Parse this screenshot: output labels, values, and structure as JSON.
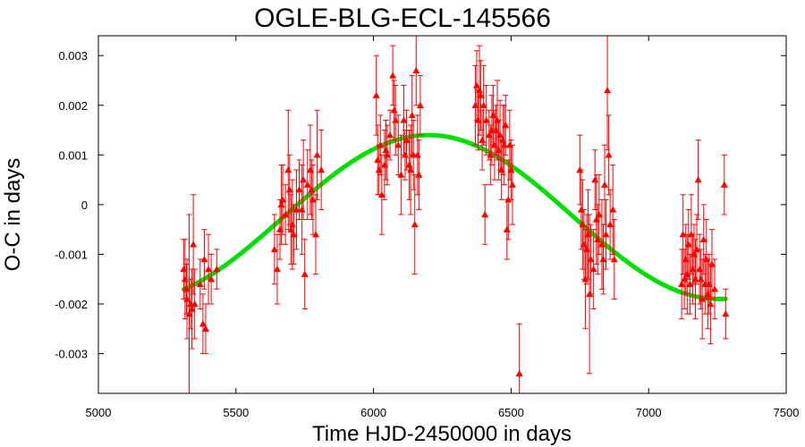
{
  "chart_data": {
    "type": "scatter",
    "title": "OGLE-BLG-ECL-145566",
    "xlabel": "Time HJD-2450000 in days",
    "ylabel": "O-C in days",
    "xlim": [
      5000,
      7500
    ],
    "ylim": [
      -0.0038,
      0.0034
    ],
    "xticks": [
      5000,
      5500,
      6000,
      6500,
      7000,
      7500
    ],
    "yticks": [
      -0.003,
      -0.002,
      -0.001,
      0,
      0.001,
      0.002,
      0.003
    ],
    "xtick_labels": [
      "5000",
      "5500",
      "6000",
      "6500",
      "7000",
      "7500"
    ],
    "ytick_labels": [
      "-0.003",
      "-0.002",
      "-0.001",
      "0",
      "0.001",
      "0.002",
      "0.003"
    ],
    "grid": false,
    "colors": {
      "points": "#ff0000",
      "fit": "#00e000"
    },
    "series": [
      {
        "kind": "points-with-errorbars",
        "points": [
          {
            "x": 5310,
            "y": -0.0013,
            "err": 0.0006
          },
          {
            "x": 5315,
            "y": -0.0015,
            "err": 0.0008
          },
          {
            "x": 5320,
            "y": -0.0017,
            "err": 0.0005
          },
          {
            "x": 5322,
            "y": -0.0019,
            "err": 0.0008
          },
          {
            "x": 5330,
            "y": -0.0022,
            "err": 0.002
          },
          {
            "x": 5335,
            "y": -0.002,
            "err": 0.0005
          },
          {
            "x": 5340,
            "y": -0.0021,
            "err": 0.0008
          },
          {
            "x": 5345,
            "y": -0.0008,
            "err": 0.001
          },
          {
            "x": 5350,
            "y": -0.002,
            "err": 0.0007
          },
          {
            "x": 5370,
            "y": -0.0016,
            "err": 0.0005
          },
          {
            "x": 5380,
            "y": -0.0024,
            "err": 0.0006
          },
          {
            "x": 5385,
            "y": -0.0011,
            "err": 0.0006
          },
          {
            "x": 5390,
            "y": -0.0025,
            "err": 0.0005
          },
          {
            "x": 5400,
            "y": -0.0013,
            "err": 0.0007
          },
          {
            "x": 5410,
            "y": -0.0015,
            "err": 0.0005
          },
          {
            "x": 5430,
            "y": -0.0013,
            "err": 0.0004
          },
          {
            "x": 5640,
            "y": -0.0009,
            "err": 0.0007
          },
          {
            "x": 5650,
            "y": -0.0013,
            "err": 0.0007
          },
          {
            "x": 5660,
            "y": -0.0005,
            "err": 0.0006
          },
          {
            "x": 5665,
            "y": 0.0,
            "err": 0.0008
          },
          {
            "x": 5670,
            "y": 0.0001,
            "err": 0.0007
          },
          {
            "x": 5680,
            "y": -0.0002,
            "err": 0.0006
          },
          {
            "x": 5690,
            "y": 0.0007,
            "err": 0.0012
          },
          {
            "x": 5695,
            "y": 0.0003,
            "err": 0.0007
          },
          {
            "x": 5700,
            "y": -0.0005,
            "err": 0.0007
          },
          {
            "x": 5705,
            "y": -0.0004,
            "err": 0.0009
          },
          {
            "x": 5710,
            "y": -0.0006,
            "err": 0.0006
          },
          {
            "x": 5720,
            "y": -0.0001,
            "err": 0.0008
          },
          {
            "x": 5730,
            "y": 0.0003,
            "err": 0.0006
          },
          {
            "x": 5740,
            "y": -0.0001,
            "err": 0.0009
          },
          {
            "x": 5745,
            "y": 0.0005,
            "err": 0.0008
          },
          {
            "x": 5750,
            "y": -0.0014,
            "err": 0.0007
          },
          {
            "x": 5760,
            "y": 0.0004,
            "err": 0.0007
          },
          {
            "x": 5770,
            "y": 0.0007,
            "err": 0.0009
          },
          {
            "x": 5775,
            "y": 0.0003,
            "err": 0.0006
          },
          {
            "x": 5780,
            "y": 0.0001,
            "err": 0.0007
          },
          {
            "x": 5790,
            "y": -0.0006,
            "err": 0.0008
          },
          {
            "x": 5795,
            "y": 0.001,
            "err": 0.0009
          },
          {
            "x": 5810,
            "y": 0.0007,
            "err": 0.0008
          },
          {
            "x": 6010,
            "y": 0.0022,
            "err": 0.0008
          },
          {
            "x": 6015,
            "y": 0.0009,
            "err": 0.0007
          },
          {
            "x": 6020,
            "y": 0.0007,
            "err": 0.0005
          },
          {
            "x": 6025,
            "y": 0.0012,
            "err": 0.0006
          },
          {
            "x": 6030,
            "y": 0.0002,
            "err": 0.0008
          },
          {
            "x": 6040,
            "y": 0.0008,
            "err": 0.0007
          },
          {
            "x": 6045,
            "y": 0.0011,
            "err": 0.0006
          },
          {
            "x": 6050,
            "y": 0.001,
            "err": 0.0006
          },
          {
            "x": 6060,
            "y": 0.0014,
            "err": 0.0005
          },
          {
            "x": 6070,
            "y": 0.0026,
            "err": 0.0006
          },
          {
            "x": 6075,
            "y": 0.0019,
            "err": 0.0006
          },
          {
            "x": 6080,
            "y": 0.0017,
            "err": 0.0007
          },
          {
            "x": 6090,
            "y": 0.0012,
            "err": 0.0006
          },
          {
            "x": 6100,
            "y": 0.0006,
            "err": 0.0008
          },
          {
            "x": 6110,
            "y": 0.0017,
            "err": 0.0007
          },
          {
            "x": 6115,
            "y": 0.001,
            "err": 0.0005
          },
          {
            "x": 6120,
            "y": 0.0013,
            "err": 0.0006
          },
          {
            "x": 6130,
            "y": 0.0008,
            "err": 0.0007
          },
          {
            "x": 6135,
            "y": 0.0007,
            "err": 0.0009
          },
          {
            "x": 6140,
            "y": 0.0018,
            "err": 0.0008
          },
          {
            "x": 6145,
            "y": 0.001,
            "err": 0.0007
          },
          {
            "x": 6150,
            "y": -0.0004,
            "err": 0.001
          },
          {
            "x": 6155,
            "y": 0.0027,
            "err": 0.0007
          },
          {
            "x": 6160,
            "y": 0.001,
            "err": 0.0008
          },
          {
            "x": 6165,
            "y": 0.0006,
            "err": 0.0007
          },
          {
            "x": 6170,
            "y": 0.002,
            "err": 0.0006
          },
          {
            "x": 6370,
            "y": 0.002,
            "err": 0.0008
          },
          {
            "x": 6375,
            "y": 0.0024,
            "err": 0.0007
          },
          {
            "x": 6380,
            "y": 0.0017,
            "err": 0.0006
          },
          {
            "x": 6385,
            "y": 0.0023,
            "err": 0.0009
          },
          {
            "x": 6390,
            "y": 0.0022,
            "err": 0.0007
          },
          {
            "x": 6395,
            "y": 0.0013,
            "err": 0.0006
          },
          {
            "x": 6400,
            "y": 0.002,
            "err": 0.0008
          },
          {
            "x": 6405,
            "y": -0.0002,
            "err": 0.0006
          },
          {
            "x": 6410,
            "y": 0.0017,
            "err": 0.0007
          },
          {
            "x": 6420,
            "y": 0.0014,
            "err": 0.0005
          },
          {
            "x": 6425,
            "y": 0.001,
            "err": 0.0006
          },
          {
            "x": 6430,
            "y": 0.0015,
            "err": 0.0007
          },
          {
            "x": 6435,
            "y": 0.0018,
            "err": 0.0006
          },
          {
            "x": 6440,
            "y": 0.0012,
            "err": 0.0007
          },
          {
            "x": 6445,
            "y": 0.0015,
            "err": 0.0005
          },
          {
            "x": 6450,
            "y": 0.0017,
            "err": 0.0008
          },
          {
            "x": 6455,
            "y": 0.0011,
            "err": 0.0006
          },
          {
            "x": 6460,
            "y": 0.0014,
            "err": 0.0007
          },
          {
            "x": 6465,
            "y": 0.0007,
            "err": 0.0006
          },
          {
            "x": 6470,
            "y": 0.0013,
            "err": 0.0007
          },
          {
            "x": 6475,
            "y": 0.0012,
            "err": 0.0008
          },
          {
            "x": 6480,
            "y": 0.0016,
            "err": 0.0006
          },
          {
            "x": 6485,
            "y": -0.0005,
            "err": 0.0006
          },
          {
            "x": 6490,
            "y": 0.0001,
            "err": 0.0008
          },
          {
            "x": 6495,
            "y": 0.0012,
            "err": 0.0007
          },
          {
            "x": 6500,
            "y": 0.0007,
            "err": 0.0006
          },
          {
            "x": 6505,
            "y": 0.0004,
            "err": 0.0008
          },
          {
            "x": 6530,
            "y": -0.0034,
            "err": 0.001
          },
          {
            "x": 6750,
            "y": 0.0007,
            "err": 0.0007
          },
          {
            "x": 6755,
            "y": -0.0001,
            "err": 0.0008
          },
          {
            "x": 6760,
            "y": -0.0004,
            "err": 0.0009
          },
          {
            "x": 6765,
            "y": -0.0008,
            "err": 0.0007
          },
          {
            "x": 6770,
            "y": -0.0015,
            "err": 0.001
          },
          {
            "x": 6775,
            "y": -0.0009,
            "err": 0.0007
          },
          {
            "x": 6780,
            "y": -0.0006,
            "err": 0.0009
          },
          {
            "x": 6785,
            "y": -0.0018,
            "err": 0.0016
          },
          {
            "x": 6790,
            "y": -0.0011,
            "err": 0.0007
          },
          {
            "x": 6800,
            "y": -0.0013,
            "err": 0.0008
          },
          {
            "x": 6805,
            "y": 0.0005,
            "err": 0.0006
          },
          {
            "x": 6810,
            "y": -0.0003,
            "err": 0.0009
          },
          {
            "x": 6815,
            "y": -0.0007,
            "err": 0.0007
          },
          {
            "x": 6820,
            "y": -0.0002,
            "err": 0.0008
          },
          {
            "x": 6830,
            "y": -0.0008,
            "err": 0.0009
          },
          {
            "x": 6835,
            "y": -0.0011,
            "err": 0.0007
          },
          {
            "x": 6840,
            "y": 0.0004,
            "err": 0.0008
          },
          {
            "x": 6845,
            "y": -0.0006,
            "err": 0.0007
          },
          {
            "x": 6850,
            "y": 0.0023,
            "err": 0.0012
          },
          {
            "x": 6855,
            "y": 0.001,
            "err": 0.0008
          },
          {
            "x": 6860,
            "y": -0.0004,
            "err": 0.0007
          },
          {
            "x": 6870,
            "y": -0.0001,
            "err": 0.0009
          },
          {
            "x": 6875,
            "y": -0.0011,
            "err": 0.0008
          },
          {
            "x": 7120,
            "y": -0.0016,
            "err": 0.0007
          },
          {
            "x": 7125,
            "y": -0.0006,
            "err": 0.0008
          },
          {
            "x": 7130,
            "y": -0.0015,
            "err": 0.0006
          },
          {
            "x": 7135,
            "y": -0.0011,
            "err": 0.0007
          },
          {
            "x": 7140,
            "y": -0.0014,
            "err": 0.0008
          },
          {
            "x": 7145,
            "y": -0.0008,
            "err": 0.0007
          },
          {
            "x": 7150,
            "y": -0.0016,
            "err": 0.0006
          },
          {
            "x": 7155,
            "y": -0.0006,
            "err": 0.0008
          },
          {
            "x": 7160,
            "y": -0.0013,
            "err": 0.0007
          },
          {
            "x": 7165,
            "y": -0.001,
            "err": 0.0006
          },
          {
            "x": 7170,
            "y": -0.0015,
            "err": 0.0008
          },
          {
            "x": 7175,
            "y": -0.0009,
            "err": 0.0007
          },
          {
            "x": 7180,
            "y": 0.0005,
            "err": 0.0008
          },
          {
            "x": 7185,
            "y": -0.0013,
            "err": 0.0007
          },
          {
            "x": 7190,
            "y": -0.0015,
            "err": 0.0006
          },
          {
            "x": 7195,
            "y": -0.0019,
            "err": 0.0008
          },
          {
            "x": 7200,
            "y": -0.0007,
            "err": 0.0007
          },
          {
            "x": 7205,
            "y": -0.0016,
            "err": 0.0006
          },
          {
            "x": 7210,
            "y": -0.0011,
            "err": 0.0008
          },
          {
            "x": 7215,
            "y": -0.0018,
            "err": 0.0007
          },
          {
            "x": 7220,
            "y": -0.0016,
            "err": 0.0006
          },
          {
            "x": 7225,
            "y": -0.002,
            "err": 0.0008
          },
          {
            "x": 7230,
            "y": -0.0012,
            "err": 0.0007
          },
          {
            "x": 7240,
            "y": -0.0017,
            "err": 0.0006
          },
          {
            "x": 7275,
            "y": 0.0004,
            "err": 0.0006
          },
          {
            "x": 7280,
            "y": -0.0022,
            "err": 0.0005
          }
        ]
      },
      {
        "kind": "fit-curve",
        "function": "sinusoid",
        "x_range": [
          5310,
          7280
        ],
        "offset": -0.00025,
        "amplitude": 0.00165,
        "period": 2110,
        "peak_x": 6200
      }
    ]
  }
}
